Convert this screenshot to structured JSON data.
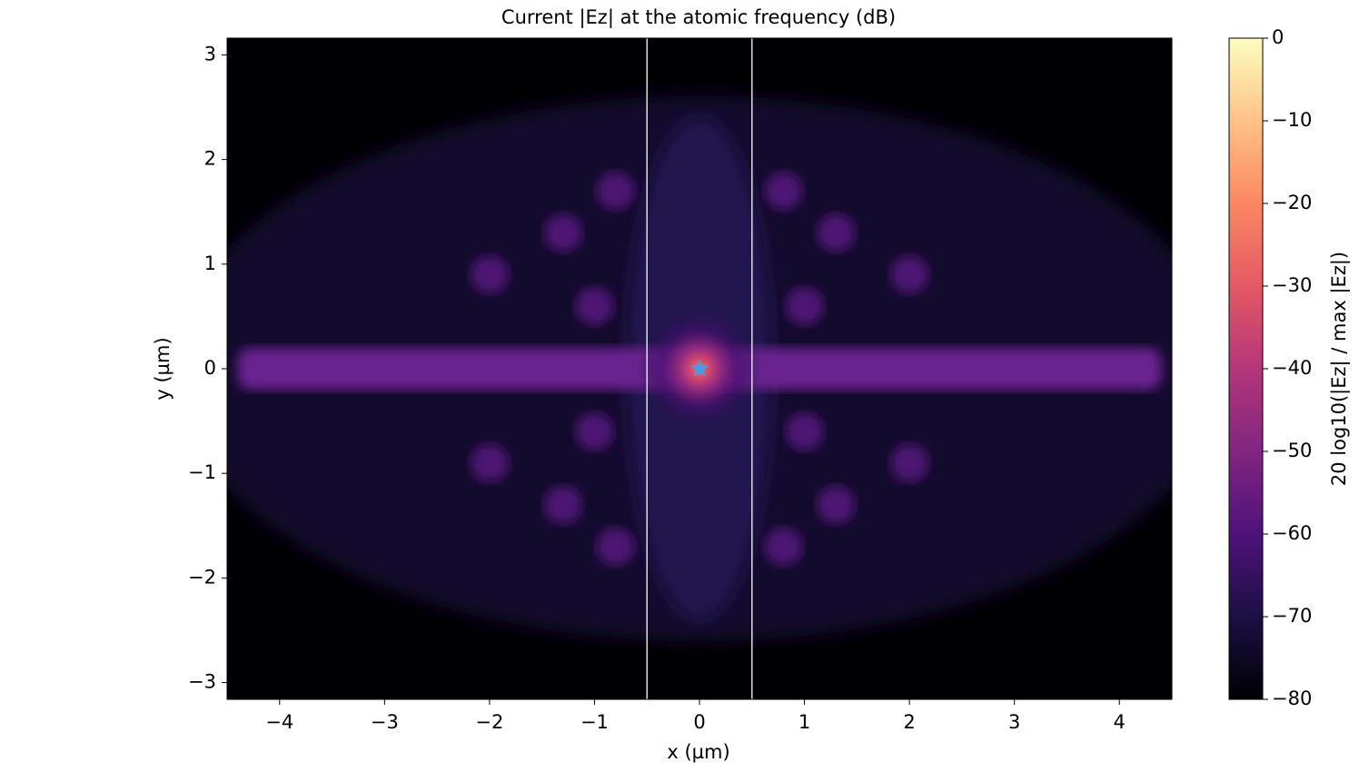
{
  "chart_data": {
    "type": "heatmap",
    "title": "Current |Ez| at the atomic frequency (dB)",
    "xlabel": "x (µm)",
    "ylabel": "y (µm)",
    "xlim": [
      -4.5,
      4.5
    ],
    "ylim": [
      -3.16,
      3.16
    ],
    "xticks": [
      {
        "value": -4,
        "label": "−4"
      },
      {
        "value": -3,
        "label": "−3"
      },
      {
        "value": -2,
        "label": "−2"
      },
      {
        "value": -1,
        "label": "−1"
      },
      0,
      1,
      2,
      3,
      4
    ],
    "yticks": [
      {
        "value": -3,
        "label": "−3"
      },
      {
        "value": -2,
        "label": "−2"
      },
      {
        "value": -1,
        "label": "−1"
      },
      0,
      1,
      2,
      3
    ],
    "vlines": [
      -0.5,
      0.5
    ],
    "marker": {
      "x": 0,
      "y": 0,
      "color": "#3fa0e8"
    },
    "colormap": "magma",
    "colorbar": {
      "label": "20 log10(|Ez| / max |Ez|)",
      "lim": [
        -80,
        0
      ],
      "ticks": [
        {
          "value": -80,
          "label": "−80"
        },
        {
          "value": -70,
          "label": "−70"
        },
        {
          "value": -60,
          "label": "−60"
        },
        {
          "value": -50,
          "label": "−50"
        },
        {
          "value": -40,
          "label": "−40"
        },
        {
          "value": -30,
          "label": "−30"
        },
        {
          "value": -20,
          "label": "−20"
        },
        {
          "value": -10,
          "label": "−10"
        },
        0
      ]
    }
  }
}
